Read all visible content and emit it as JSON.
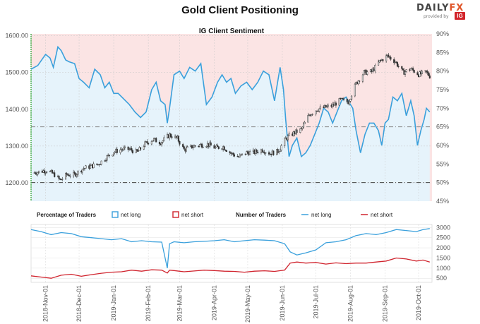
{
  "header": {
    "title": "Gold Client Positioning",
    "brand_part1": "DAILY",
    "brand_part2": "FX",
    "brand_sub": "provided by",
    "brand_badge": "IG"
  },
  "chart_data": [
    {
      "type": "line",
      "title": "IG Client Sentiment",
      "left_axis": {
        "ticks": [
          1200,
          1300,
          1400,
          1500,
          1600
        ],
        "tick_labels": [
          "1200.00",
          "1300.00",
          "1400.00",
          "1500.00",
          "1600.00"
        ],
        "range": [
          1150,
          1605
        ]
      },
      "right_axis": {
        "ticks": [
          45,
          50,
          55,
          60,
          65,
          70,
          75,
          80,
          85,
          90
        ],
        "tick_labels": [
          "45%",
          "50%",
          "55%",
          "60%",
          "65%",
          "70%",
          "75%",
          "80%",
          "85%",
          "90%"
        ],
        "range": [
          45,
          90
        ]
      },
      "reference_lines": [
        {
          "value": 50,
          "axis": "right"
        },
        {
          "value": 65,
          "axis": "right"
        }
      ],
      "grid": true,
      "colors": {
        "net_long_fill": "#e6f3fb",
        "net_short_fill": "#fbe4e4",
        "sentiment_line": "#3aa0dc",
        "candle": "#333333"
      },
      "series": [
        {
          "role": "net long % (right axis)",
          "x": [
            "2018-10-19",
            "2018-10-25",
            "2018-11-01",
            "2018-11-05",
            "2018-11-08",
            "2018-11-12",
            "2018-11-15",
            "2018-11-19",
            "2018-11-22",
            "2018-11-27",
            "2018-12-01",
            "2018-12-05",
            "2018-12-10",
            "2018-12-15",
            "2018-12-20",
            "2018-12-24",
            "2018-12-28",
            "2019-01-01",
            "2019-01-05",
            "2019-01-10",
            "2019-01-15",
            "2019-01-20",
            "2019-01-25",
            "2019-01-30",
            "2019-02-04",
            "2019-02-08",
            "2019-02-12",
            "2019-02-16",
            "2019-02-18",
            "2019-02-20",
            "2019-02-24",
            "2019-03-01",
            "2019-03-05",
            "2019-03-10",
            "2019-03-15",
            "2019-03-20",
            "2019-03-25",
            "2019-03-30",
            "2019-04-04",
            "2019-04-08",
            "2019-04-12",
            "2019-04-16",
            "2019-04-20",
            "2019-04-25",
            "2019-04-30",
            "2019-05-05",
            "2019-05-10",
            "2019-05-15",
            "2019-05-20",
            "2019-05-25",
            "2019-05-30",
            "2019-06-02",
            "2019-06-04",
            "2019-06-07",
            "2019-06-10",
            "2019-06-14",
            "2019-06-18",
            "2019-06-22",
            "2019-06-26",
            "2019-06-30",
            "2019-07-04",
            "2019-07-08",
            "2019-07-12",
            "2019-07-16",
            "2019-07-20",
            "2019-07-24",
            "2019-07-28",
            "2019-08-01",
            "2019-08-03",
            "2019-08-06",
            "2019-08-10",
            "2019-08-14",
            "2019-08-18",
            "2019-08-22",
            "2019-08-26",
            "2019-08-29",
            "2019-09-01",
            "2019-09-04",
            "2019-09-08",
            "2019-09-12",
            "2019-09-16",
            "2019-09-20",
            "2019-09-24",
            "2019-09-27",
            "2019-09-30",
            "2019-10-03",
            "2019-10-06",
            "2019-10-08",
            "2019-10-11"
          ],
          "values": [
            80.5,
            81.5,
            84.5,
            83.5,
            81,
            86.5,
            85.5,
            83,
            82.5,
            82,
            78,
            77,
            75.5,
            80.5,
            79,
            75.5,
            77,
            74,
            74,
            72.5,
            71,
            69,
            67.5,
            69,
            75,
            77,
            72,
            71,
            66,
            70,
            79,
            80,
            78,
            81,
            80,
            82,
            71,
            73,
            77,
            79,
            77,
            78,
            74,
            76,
            77,
            75,
            77,
            80,
            79,
            72,
            81,
            75,
            67,
            57,
            60,
            62,
            57,
            58,
            60,
            63,
            66,
            70,
            69,
            66,
            69,
            72,
            73,
            71,
            70,
            64,
            58,
            63,
            66,
            66,
            64,
            60,
            66,
            67,
            73,
            72,
            74,
            68,
            72,
            68,
            60,
            64,
            67,
            70,
            69
          ]
        },
        {
          "role": "price (left axis)",
          "x": [
            "2018-10-19",
            "2018-10-26",
            "2018-11-02",
            "2018-11-09",
            "2018-11-14",
            "2018-11-20",
            "2018-11-27",
            "2018-12-04",
            "2018-12-11",
            "2018-12-18",
            "2018-12-25",
            "2019-01-01",
            "2019-01-08",
            "2019-01-15",
            "2019-01-22",
            "2019-01-29",
            "2019-02-05",
            "2019-02-12",
            "2019-02-20",
            "2019-02-27",
            "2019-03-05",
            "2019-03-12",
            "2019-03-19",
            "2019-03-26",
            "2019-04-02",
            "2019-04-09",
            "2019-04-16",
            "2019-04-23",
            "2019-04-30",
            "2019-05-07",
            "2019-05-14",
            "2019-05-21",
            "2019-05-28",
            "2019-06-04",
            "2019-06-11",
            "2019-06-18",
            "2019-06-25",
            "2019-07-02",
            "2019-07-09",
            "2019-07-16",
            "2019-07-23",
            "2019-07-30",
            "2019-08-06",
            "2019-08-13",
            "2019-08-20",
            "2019-08-27",
            "2019-09-03",
            "2019-09-10",
            "2019-09-17",
            "2019-09-24",
            "2019-10-01",
            "2019-10-08",
            "2019-10-11"
          ],
          "values": [
            1226,
            1230,
            1234,
            1222,
            1207,
            1222,
            1222,
            1238,
            1245,
            1250,
            1268,
            1284,
            1291,
            1291,
            1283,
            1306,
            1318,
            1310,
            1330,
            1320,
            1290,
            1298,
            1303,
            1305,
            1295,
            1298,
            1280,
            1270,
            1282,
            1283,
            1290,
            1280,
            1285,
            1320,
            1335,
            1345,
            1385,
            1400,
            1405,
            1410,
            1425,
            1420,
            1470,
            1500,
            1502,
            1530,
            1545,
            1530,
            1500,
            1510,
            1495,
            1500,
            1490
          ]
        }
      ]
    },
    {
      "type": "line",
      "header_percentage": "Percentage of Traders",
      "header_number": "Number of Traders",
      "legend_net_long": "net long",
      "legend_net_short": "net short",
      "right_axis": {
        "ticks": [
          500,
          1000,
          1500,
          2000,
          2500,
          3000
        ],
        "tick_labels": [
          "500",
          "1000",
          "1500",
          "2000",
          "2500",
          "3000"
        ],
        "range": [
          300,
          3150
        ]
      },
      "x_tick_labels": [
        "2018-Nov-01",
        "2018-Dec-01",
        "2019-Jan-01",
        "2019-Feb-01",
        "2019-Mar-01",
        "2019-Apr-01",
        "2019-May-01",
        "2019-Jun-01",
        "2019-Jul-01",
        "2019-Aug-01",
        "2019-Sep-01",
        "2019-Oct-01"
      ],
      "x_ticks": [
        "2018-11-01",
        "2018-12-01",
        "2019-01-01",
        "2019-02-01",
        "2019-03-01",
        "2019-04-01",
        "2019-05-01",
        "2019-06-01",
        "2019-07-01",
        "2019-08-01",
        "2019-09-01",
        "2019-10-01"
      ],
      "colors": {
        "net_long": "#3aa0dc",
        "net_short": "#d0242e"
      },
      "series": [
        {
          "name": "net long",
          "x": [
            "2018-10-19",
            "2018-10-28",
            "2018-11-06",
            "2018-11-15",
            "2018-11-24",
            "2018-12-03",
            "2018-12-12",
            "2018-12-21",
            "2018-12-30",
            "2019-01-08",
            "2019-01-17",
            "2019-01-26",
            "2019-02-04",
            "2019-02-13",
            "2019-02-18",
            "2019-02-20",
            "2019-02-24",
            "2019-03-05",
            "2019-03-14",
            "2019-03-23",
            "2019-04-01",
            "2019-04-10",
            "2019-04-19",
            "2019-04-28",
            "2019-05-07",
            "2019-05-16",
            "2019-05-25",
            "2019-06-03",
            "2019-06-08",
            "2019-06-14",
            "2019-06-22",
            "2019-07-01",
            "2019-07-10",
            "2019-07-19",
            "2019-07-28",
            "2019-08-06",
            "2019-08-15",
            "2019-08-24",
            "2019-09-02",
            "2019-09-11",
            "2019-09-20",
            "2019-09-29",
            "2019-10-05",
            "2019-10-11"
          ],
          "values": [
            2900,
            2800,
            2650,
            2750,
            2700,
            2550,
            2500,
            2450,
            2400,
            2450,
            2300,
            2350,
            2300,
            2280,
            1000,
            2200,
            2300,
            2250,
            2300,
            2320,
            2350,
            2400,
            2300,
            2350,
            2400,
            2380,
            2350,
            2200,
            1800,
            1650,
            1750,
            1900,
            2250,
            2300,
            2400,
            2600,
            2700,
            2650,
            2750,
            2900,
            2850,
            2800,
            2900,
            2950
          ]
        },
        {
          "name": "net short",
          "x": [
            "2018-10-19",
            "2018-10-28",
            "2018-11-06",
            "2018-11-15",
            "2018-11-24",
            "2018-12-03",
            "2018-12-12",
            "2018-12-21",
            "2018-12-30",
            "2019-01-08",
            "2019-01-17",
            "2019-01-26",
            "2019-02-04",
            "2019-02-13",
            "2019-02-18",
            "2019-02-20",
            "2019-02-24",
            "2019-03-05",
            "2019-03-14",
            "2019-03-23",
            "2019-04-01",
            "2019-04-10",
            "2019-04-19",
            "2019-04-28",
            "2019-05-07",
            "2019-05-16",
            "2019-05-25",
            "2019-06-03",
            "2019-06-08",
            "2019-06-14",
            "2019-06-22",
            "2019-07-01",
            "2019-07-10",
            "2019-07-19",
            "2019-07-28",
            "2019-08-06",
            "2019-08-15",
            "2019-08-24",
            "2019-09-02",
            "2019-09-11",
            "2019-09-20",
            "2019-09-29",
            "2019-10-05",
            "2019-10-11"
          ],
          "values": [
            620,
            560,
            500,
            650,
            700,
            600,
            680,
            750,
            800,
            820,
            900,
            850,
            920,
            900,
            760,
            900,
            880,
            820,
            860,
            900,
            880,
            850,
            840,
            800,
            850,
            870,
            840,
            900,
            1250,
            1300,
            1250,
            1280,
            1200,
            1260,
            1220,
            1250,
            1250,
            1300,
            1350,
            1500,
            1450,
            1350,
            1400,
            1300
          ]
        }
      ]
    }
  ]
}
